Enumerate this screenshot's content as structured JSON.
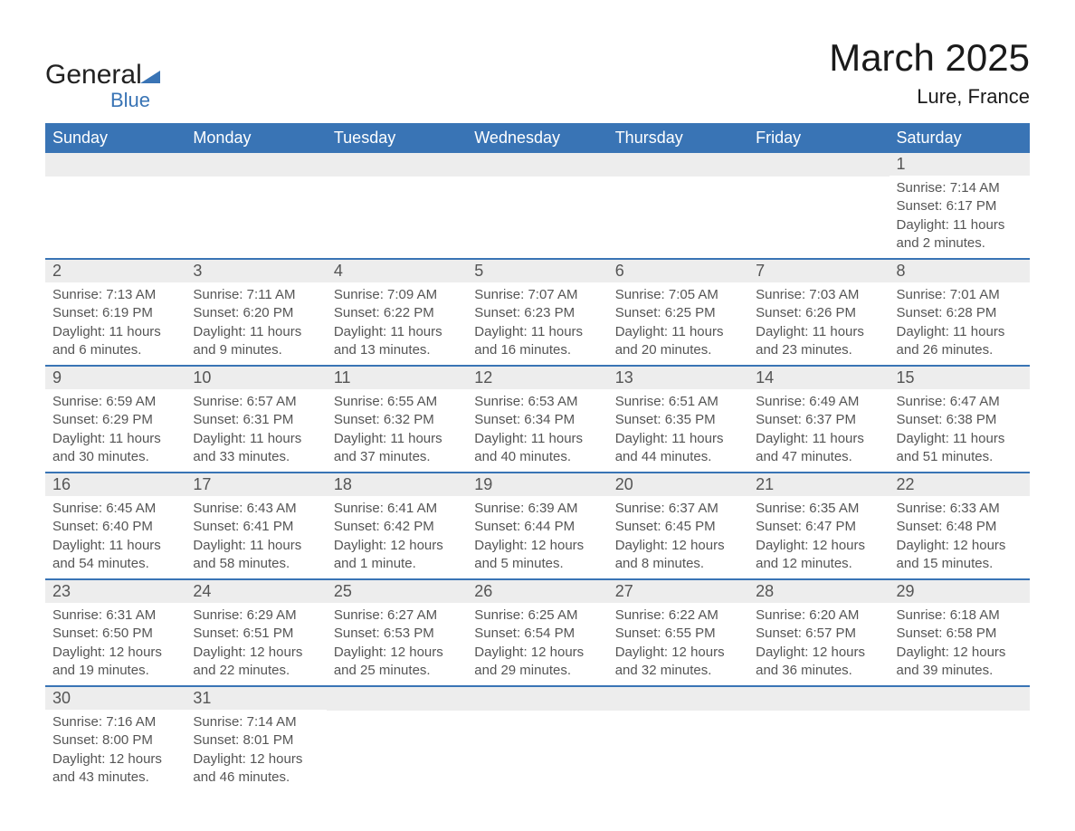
{
  "logo": {
    "word1": "General",
    "word2": "Blue"
  },
  "title": "March 2025",
  "location": "Lure, France",
  "header_bg": "#3974b5",
  "header_fg": "#ffffff",
  "daynum_bg": "#ededed",
  "text_color": "#555555",
  "week_border_color": "#3974b5",
  "columns": [
    "Sunday",
    "Monday",
    "Tuesday",
    "Wednesday",
    "Thursday",
    "Friday",
    "Saturday"
  ],
  "weeks": [
    [
      {
        "empty": true
      },
      {
        "empty": true
      },
      {
        "empty": true
      },
      {
        "empty": true
      },
      {
        "empty": true
      },
      {
        "empty": true
      },
      {
        "day": "1",
        "sunrise": "Sunrise: 7:14 AM",
        "sunset": "Sunset: 6:17 PM",
        "daylight1": "Daylight: 11 hours",
        "daylight2": "and 2 minutes."
      }
    ],
    [
      {
        "day": "2",
        "sunrise": "Sunrise: 7:13 AM",
        "sunset": "Sunset: 6:19 PM",
        "daylight1": "Daylight: 11 hours",
        "daylight2": "and 6 minutes."
      },
      {
        "day": "3",
        "sunrise": "Sunrise: 7:11 AM",
        "sunset": "Sunset: 6:20 PM",
        "daylight1": "Daylight: 11 hours",
        "daylight2": "and 9 minutes."
      },
      {
        "day": "4",
        "sunrise": "Sunrise: 7:09 AM",
        "sunset": "Sunset: 6:22 PM",
        "daylight1": "Daylight: 11 hours",
        "daylight2": "and 13 minutes."
      },
      {
        "day": "5",
        "sunrise": "Sunrise: 7:07 AM",
        "sunset": "Sunset: 6:23 PM",
        "daylight1": "Daylight: 11 hours",
        "daylight2": "and 16 minutes."
      },
      {
        "day": "6",
        "sunrise": "Sunrise: 7:05 AM",
        "sunset": "Sunset: 6:25 PM",
        "daylight1": "Daylight: 11 hours",
        "daylight2": "and 20 minutes."
      },
      {
        "day": "7",
        "sunrise": "Sunrise: 7:03 AM",
        "sunset": "Sunset: 6:26 PM",
        "daylight1": "Daylight: 11 hours",
        "daylight2": "and 23 minutes."
      },
      {
        "day": "8",
        "sunrise": "Sunrise: 7:01 AM",
        "sunset": "Sunset: 6:28 PM",
        "daylight1": "Daylight: 11 hours",
        "daylight2": "and 26 minutes."
      }
    ],
    [
      {
        "day": "9",
        "sunrise": "Sunrise: 6:59 AM",
        "sunset": "Sunset: 6:29 PM",
        "daylight1": "Daylight: 11 hours",
        "daylight2": "and 30 minutes."
      },
      {
        "day": "10",
        "sunrise": "Sunrise: 6:57 AM",
        "sunset": "Sunset: 6:31 PM",
        "daylight1": "Daylight: 11 hours",
        "daylight2": "and 33 minutes."
      },
      {
        "day": "11",
        "sunrise": "Sunrise: 6:55 AM",
        "sunset": "Sunset: 6:32 PM",
        "daylight1": "Daylight: 11 hours",
        "daylight2": "and 37 minutes."
      },
      {
        "day": "12",
        "sunrise": "Sunrise: 6:53 AM",
        "sunset": "Sunset: 6:34 PM",
        "daylight1": "Daylight: 11 hours",
        "daylight2": "and 40 minutes."
      },
      {
        "day": "13",
        "sunrise": "Sunrise: 6:51 AM",
        "sunset": "Sunset: 6:35 PM",
        "daylight1": "Daylight: 11 hours",
        "daylight2": "and 44 minutes."
      },
      {
        "day": "14",
        "sunrise": "Sunrise: 6:49 AM",
        "sunset": "Sunset: 6:37 PM",
        "daylight1": "Daylight: 11 hours",
        "daylight2": "and 47 minutes."
      },
      {
        "day": "15",
        "sunrise": "Sunrise: 6:47 AM",
        "sunset": "Sunset: 6:38 PM",
        "daylight1": "Daylight: 11 hours",
        "daylight2": "and 51 minutes."
      }
    ],
    [
      {
        "day": "16",
        "sunrise": "Sunrise: 6:45 AM",
        "sunset": "Sunset: 6:40 PM",
        "daylight1": "Daylight: 11 hours",
        "daylight2": "and 54 minutes."
      },
      {
        "day": "17",
        "sunrise": "Sunrise: 6:43 AM",
        "sunset": "Sunset: 6:41 PM",
        "daylight1": "Daylight: 11 hours",
        "daylight2": "and 58 minutes."
      },
      {
        "day": "18",
        "sunrise": "Sunrise: 6:41 AM",
        "sunset": "Sunset: 6:42 PM",
        "daylight1": "Daylight: 12 hours",
        "daylight2": "and 1 minute."
      },
      {
        "day": "19",
        "sunrise": "Sunrise: 6:39 AM",
        "sunset": "Sunset: 6:44 PM",
        "daylight1": "Daylight: 12 hours",
        "daylight2": "and 5 minutes."
      },
      {
        "day": "20",
        "sunrise": "Sunrise: 6:37 AM",
        "sunset": "Sunset: 6:45 PM",
        "daylight1": "Daylight: 12 hours",
        "daylight2": "and 8 minutes."
      },
      {
        "day": "21",
        "sunrise": "Sunrise: 6:35 AM",
        "sunset": "Sunset: 6:47 PM",
        "daylight1": "Daylight: 12 hours",
        "daylight2": "and 12 minutes."
      },
      {
        "day": "22",
        "sunrise": "Sunrise: 6:33 AM",
        "sunset": "Sunset: 6:48 PM",
        "daylight1": "Daylight: 12 hours",
        "daylight2": "and 15 minutes."
      }
    ],
    [
      {
        "day": "23",
        "sunrise": "Sunrise: 6:31 AM",
        "sunset": "Sunset: 6:50 PM",
        "daylight1": "Daylight: 12 hours",
        "daylight2": "and 19 minutes."
      },
      {
        "day": "24",
        "sunrise": "Sunrise: 6:29 AM",
        "sunset": "Sunset: 6:51 PM",
        "daylight1": "Daylight: 12 hours",
        "daylight2": "and 22 minutes."
      },
      {
        "day": "25",
        "sunrise": "Sunrise: 6:27 AM",
        "sunset": "Sunset: 6:53 PM",
        "daylight1": "Daylight: 12 hours",
        "daylight2": "and 25 minutes."
      },
      {
        "day": "26",
        "sunrise": "Sunrise: 6:25 AM",
        "sunset": "Sunset: 6:54 PM",
        "daylight1": "Daylight: 12 hours",
        "daylight2": "and 29 minutes."
      },
      {
        "day": "27",
        "sunrise": "Sunrise: 6:22 AM",
        "sunset": "Sunset: 6:55 PM",
        "daylight1": "Daylight: 12 hours",
        "daylight2": "and 32 minutes."
      },
      {
        "day": "28",
        "sunrise": "Sunrise: 6:20 AM",
        "sunset": "Sunset: 6:57 PM",
        "daylight1": "Daylight: 12 hours",
        "daylight2": "and 36 minutes."
      },
      {
        "day": "29",
        "sunrise": "Sunrise: 6:18 AM",
        "sunset": "Sunset: 6:58 PM",
        "daylight1": "Daylight: 12 hours",
        "daylight2": "and 39 minutes."
      }
    ],
    [
      {
        "day": "30",
        "sunrise": "Sunrise: 7:16 AM",
        "sunset": "Sunset: 8:00 PM",
        "daylight1": "Daylight: 12 hours",
        "daylight2": "and 43 minutes."
      },
      {
        "day": "31",
        "sunrise": "Sunrise: 7:14 AM",
        "sunset": "Sunset: 8:01 PM",
        "daylight1": "Daylight: 12 hours",
        "daylight2": "and 46 minutes."
      },
      {
        "empty": true
      },
      {
        "empty": true
      },
      {
        "empty": true
      },
      {
        "empty": true
      },
      {
        "empty": true
      }
    ]
  ]
}
